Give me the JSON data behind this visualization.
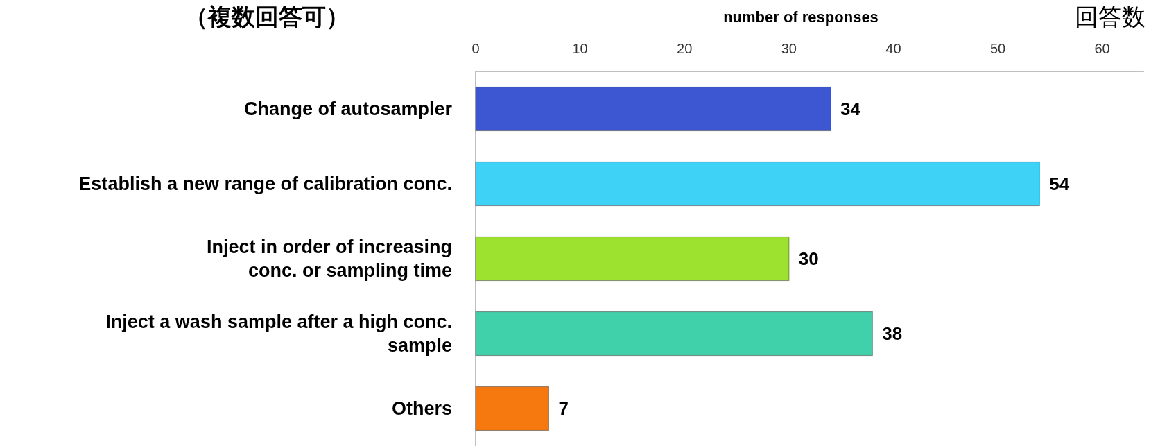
{
  "chart_data": {
    "type": "bar",
    "orientation": "horizontal",
    "title": "（複数回答可）",
    "xlabel": "number of responses",
    "annotations": [
      "回答数"
    ],
    "categories": [
      "Change of autosampler",
      "Establish a new range of calibration conc.",
      "Inject in order of increasing\nconc. or sampling time",
      "Inject a wash sample after a high conc.\nsample",
      "Others"
    ],
    "values": [
      34,
      54,
      30,
      38,
      7
    ],
    "colors": [
      "#3d56d1",
      "#3ed2f6",
      "#9de22f",
      "#41d1aa",
      "#f5790f"
    ],
    "xlim": [
      0,
      64
    ],
    "xticks": [
      0,
      10,
      20,
      30,
      40,
      50,
      60
    ],
    "data_labels": true
  }
}
